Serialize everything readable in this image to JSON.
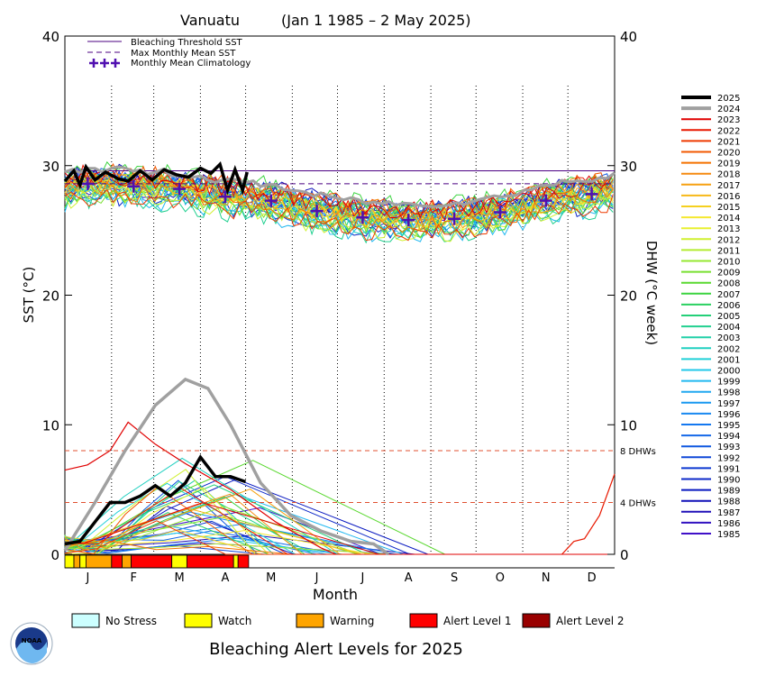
{
  "chart_data": {
    "type": "line",
    "title_location": "Vanuatu",
    "title_period": "(Jan 1 1985 – 2 May 2025)",
    "xlabel": "Month",
    "ylabel_left": "SST (°C)",
    "ylabel_right": "DHW (°C week)",
    "ylim": [
      0,
      40
    ],
    "yticks": [
      "0",
      "10",
      "20",
      "30",
      "40"
    ],
    "months": [
      "J",
      "F",
      "M",
      "A",
      "M",
      "J",
      "J",
      "A",
      "S",
      "O",
      "N",
      "D"
    ],
    "reference_lines": {
      "bleaching_threshold_sst": 29.6,
      "max_monthly_mean_sst": 28.6,
      "dhw_8_label": "8 DHWs",
      "dhw_4_label": "4 DHWs",
      "dhw_8_value": 8,
      "dhw_4_value": 4
    },
    "legend": [
      "Bleaching Threshold SST",
      "Max Monthly Mean SST",
      "Monthly Mean Climatology"
    ],
    "climatology_sst": [
      28.6,
      28.4,
      28.2,
      27.6,
      27.3,
      26.5,
      26.0,
      25.8,
      25.9,
      26.4,
      27.3,
      27.8
    ],
    "years": [
      "2025",
      "2024",
      "2023",
      "2022",
      "2021",
      "2020",
      "2019",
      "2018",
      "2017",
      "2016",
      "2015",
      "2014",
      "2013",
      "2012",
      "2011",
      "2010",
      "2009",
      "2008",
      "2007",
      "2006",
      "2005",
      "2004",
      "2003",
      "2002",
      "2001",
      "2000",
      "1999",
      "1998",
      "1997",
      "1996",
      "1995",
      "1994",
      "1993",
      "1992",
      "1991",
      "1990",
      "1989",
      "1988",
      "1987",
      "1986",
      "1985"
    ],
    "year_colors": [
      "#000000",
      "#a0a0a0",
      "#e00000",
      "#e81800",
      "#ee3a00",
      "#f25800",
      "#f47200",
      "#f58a10",
      "#f6a010",
      "#f7b818",
      "#f5d020",
      "#f5e830",
      "#e8f030",
      "#d0f030",
      "#b4ec30",
      "#96e830",
      "#78e030",
      "#5ad830",
      "#3cd440",
      "#2ad060",
      "#24d078",
      "#22d090",
      "#22d0a8",
      "#20d0c0",
      "#20d0d8",
      "#20c8e8",
      "#20b8f0",
      "#20a8f0",
      "#1898f0",
      "#1888f0",
      "#1478f0",
      "#1468e8",
      "#1058e0",
      "#1048d8",
      "#0c38d0",
      "#0c28c8",
      "#0818c0",
      "#1010b8",
      "#2010b8",
      "#3010c0",
      "#4010c8"
    ],
    "series_2025": {
      "name": "2025",
      "sst_day": [
        0,
        6,
        10,
        14,
        20,
        27,
        35,
        42,
        50,
        58,
        66,
        74,
        82,
        90,
        97,
        103,
        108,
        113,
        118,
        121
      ],
      "sst": [
        28.8,
        29.6,
        28.5,
        29.9,
        28.9,
        29.5,
        29.0,
        28.8,
        29.6,
        28.9,
        29.7,
        29.3,
        29.1,
        29.8,
        29.4,
        30.1,
        28.1,
        29.7,
        28.1,
        29.5
      ],
      "dhw_day": [
        0,
        10,
        20,
        30,
        40,
        50,
        60,
        70,
        80,
        90,
        100,
        110,
        120
      ],
      "dhw": [
        0.8,
        1.0,
        2.5,
        4.0,
        4.0,
        4.5,
        5.3,
        4.5,
        5.5,
        7.5,
        6.0,
        6.0,
        5.6
      ]
    },
    "series_2024": {
      "name": "2024",
      "dhw_day": [
        0,
        20,
        40,
        60,
        80,
        95,
        110,
        130,
        150,
        170,
        190,
        205,
        215
      ],
      "dhw": [
        0.3,
        4.0,
        8.0,
        11.5,
        13.5,
        12.8,
        10.0,
        5.5,
        3.0,
        1.8,
        1.0,
        0.8,
        0
      ]
    },
    "alert_bar": [
      {
        "level": "Watch",
        "color": "#ffff00",
        "start_day": 0,
        "end_day": 6
      },
      {
        "level": "Warning",
        "color": "#ffa500",
        "start_day": 6,
        "end_day": 10
      },
      {
        "level": "Watch",
        "color": "#ffff00",
        "start_day": 10,
        "end_day": 14
      },
      {
        "level": "Warning",
        "color": "#ffa500",
        "start_day": 14,
        "end_day": 31
      },
      {
        "level": "Alert Level 1",
        "color": "#ff0000",
        "start_day": 31,
        "end_day": 38
      },
      {
        "level": "Warning",
        "color": "#ffa500",
        "start_day": 38,
        "end_day": 44
      },
      {
        "level": "Alert Level 1",
        "color": "#ff0000",
        "start_day": 44,
        "end_day": 71
      },
      {
        "level": "Watch",
        "color": "#ffff00",
        "start_day": 71,
        "end_day": 81
      },
      {
        "level": "Alert Level 1",
        "color": "#ff0000",
        "start_day": 81,
        "end_day": 112
      },
      {
        "level": "Watch",
        "color": "#ffff00",
        "start_day": 112,
        "end_day": 115
      },
      {
        "level": "Alert Level 1",
        "color": "#ff0000",
        "start_day": 115,
        "end_day": 122
      }
    ],
    "alert_legend": [
      {
        "label": "No Stress",
        "color": "#ccffff"
      },
      {
        "label": "Watch",
        "color": "#ffff00"
      },
      {
        "label": "Warning",
        "color": "#ffa500"
      },
      {
        "label": "Alert Level 1",
        "color": "#ff0000"
      },
      {
        "label": "Alert Level 2",
        "color": "#990000"
      }
    ],
    "footer_title": "Bleaching Alert Levels for 2025",
    "logo_text": "NOAA"
  }
}
